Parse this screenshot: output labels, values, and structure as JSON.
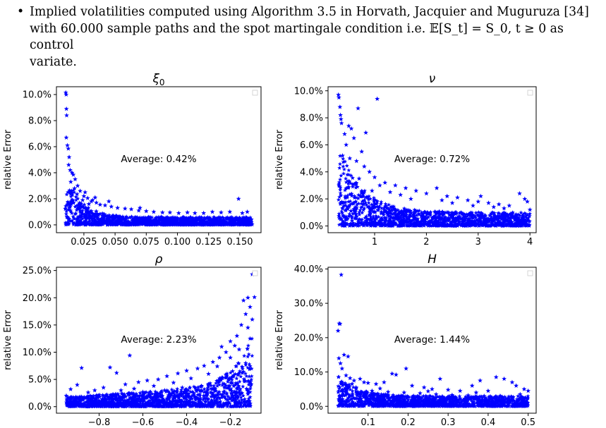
{
  "document": {
    "bullet_symbol": "•",
    "paragraph": {
      "line1": "Implied volatilities computed using Algorithm 3.5 in Horvath, Jacquier and Muguruza [34]",
      "line2": "with 60.000 sample paths and the spot martingale condition i.e. 𝔼[S_t] = S_0, t ≥ 0 as control",
      "line3": "variate."
    }
  },
  "chart_data": [
    {
      "type": "scatter",
      "title": "ξ0",
      "xlabel": "",
      "ylabel": "relative Error",
      "annotation": "Average: 0.42%",
      "xlim": [
        0.003,
        0.167
      ],
      "ylim": [
        -0.6,
        10.6
      ],
      "xticks": [
        0.025,
        0.05,
        0.075,
        0.1,
        0.125,
        0.15
      ],
      "xtick_labels": [
        "0.025",
        "0.050",
        "0.075",
        "0.100",
        "0.125",
        "0.150"
      ],
      "yticks": [
        0,
        2,
        4,
        6,
        8,
        10
      ],
      "ytick_labels": [
        "0.0%",
        "2.0%",
        "4.0%",
        "6.0%",
        "8.0%",
        "10.0%"
      ],
      "marker_color": "#0000ff",
      "marker": "star",
      "grid": false,
      "legend": "top-right, empty box",
      "series": [
        {
          "values": [
            [
              0.0105,
              10.15
            ],
            [
              0.0108,
              10.0
            ],
            [
              0.011,
              8.9
            ],
            [
              0.0112,
              8.4
            ],
            [
              0.0109,
              6.7
            ],
            [
              0.0118,
              6.1
            ],
            [
              0.0125,
              5.85
            ],
            [
              0.0132,
              5.2
            ],
            [
              0.0128,
              4.6
            ],
            [
              0.014,
              4.2
            ],
            [
              0.0155,
              4.0
            ],
            [
              0.0165,
              3.85
            ],
            [
              0.018,
              3.5
            ],
            [
              0.0145,
              3.3
            ],
            [
              0.02,
              3.0
            ],
            [
              0.0175,
              2.8
            ],
            [
              0.022,
              2.6
            ],
            [
              0.0195,
              2.35
            ],
            [
              0.025,
              2.2
            ],
            [
              0.028,
              2.05
            ],
            [
              0.024,
              1.9
            ],
            [
              0.031,
              1.8
            ],
            [
              0.035,
              1.7
            ],
            [
              0.029,
              1.6
            ],
            [
              0.038,
              1.55
            ],
            [
              0.042,
              1.5
            ],
            [
              0.047,
              1.4
            ],
            [
              0.052,
              1.3
            ],
            [
              0.058,
              1.25
            ],
            [
              0.063,
              1.2
            ],
            [
              0.069,
              1.1
            ],
            [
              0.075,
              1.05
            ],
            [
              0.081,
              1.0
            ],
            [
              0.088,
              0.95
            ],
            [
              0.094,
              0.95
            ],
            [
              0.101,
              0.9
            ],
            [
              0.108,
              0.95
            ],
            [
              0.114,
              0.9
            ],
            [
              0.121,
              0.9
            ],
            [
              0.128,
              1.0
            ],
            [
              0.135,
              0.95
            ],
            [
              0.142,
              1.0
            ],
            [
              0.149,
              2.0
            ],
            [
              0.152,
              0.9
            ],
            [
              0.156,
              1.0
            ],
            [
              0.045,
              1.8
            ],
            [
              0.034,
              2.1
            ],
            [
              0.026,
              2.5
            ],
            [
              0.032,
              1.9
            ],
            [
              0.07,
              1.3
            ]
          ]
        }
      ]
    },
    {
      "type": "scatter",
      "title": "ν",
      "xlabel": "",
      "ylabel": "relative Error",
      "annotation": "Average: 0.72%",
      "xlim": [
        0.1,
        4.12
      ],
      "ylim": [
        -0.5,
        10.3
      ],
      "xticks": [
        1,
        2,
        3,
        4
      ],
      "xtick_labels": [
        "1",
        "2",
        "3",
        "4"
      ],
      "yticks": [
        0,
        2,
        4,
        6,
        8,
        10
      ],
      "ytick_labels": [
        "0.0%",
        "2.0%",
        "4.0%",
        "6.0%",
        "8.0%",
        "10.0%"
      ],
      "marker_color": "#0000ff",
      "marker": "star",
      "grid": false,
      "legend": "top-right, empty box",
      "series": [
        {
          "values": [
            [
              0.3,
              9.7
            ],
            [
              0.31,
              9.5
            ],
            [
              0.33,
              8.8
            ],
            [
              0.34,
              8.2
            ],
            [
              0.35,
              7.9
            ],
            [
              0.36,
              7.6
            ],
            [
              0.5,
              7.4
            ],
            [
              0.55,
              7.2
            ],
            [
              0.68,
              8.7
            ],
            [
              0.83,
              6.9
            ],
            [
              1.05,
              9.4
            ],
            [
              0.42,
              6.8
            ],
            [
              0.6,
              6.5
            ],
            [
              0.45,
              6.0
            ],
            [
              0.75,
              5.5
            ],
            [
              0.38,
              5.2
            ],
            [
              0.52,
              5.0
            ],
            [
              0.65,
              4.8
            ],
            [
              0.8,
              4.4
            ],
            [
              0.9,
              4.0
            ],
            [
              1.0,
              3.6
            ],
            [
              1.2,
              3.2
            ],
            [
              1.4,
              3.0
            ],
            [
              1.6,
              2.8
            ],
            [
              1.8,
              2.6
            ],
            [
              2.0,
              2.4
            ],
            [
              2.2,
              2.8
            ],
            [
              2.4,
              2.2
            ],
            [
              2.6,
              2.1
            ],
            [
              2.8,
              1.9
            ],
            [
              3.0,
              1.8
            ],
            [
              3.05,
              2.2
            ],
            [
              3.2,
              1.7
            ],
            [
              3.4,
              1.6
            ],
            [
              3.6,
              1.5
            ],
            [
              3.8,
              2.4
            ],
            [
              3.9,
              2.0
            ],
            [
              3.95,
              1.8
            ],
            [
              1.1,
              3.0
            ],
            [
              0.7,
              3.5
            ],
            [
              1.5,
              2.3
            ],
            [
              2.3,
              1.9
            ],
            [
              2.9,
              1.5
            ],
            [
              3.5,
              1.3
            ],
            [
              0.95,
              2.6
            ],
            [
              1.3,
              2.5
            ],
            [
              1.7,
              2.0
            ],
            [
              2.5,
              1.7
            ],
            [
              3.3,
              1.4
            ],
            [
              4.0,
              1.2
            ]
          ]
        }
      ]
    },
    {
      "type": "scatter",
      "title": "ρ",
      "xlabel": "",
      "ylabel": "relative Error",
      "annotation": "Average: 2.23%",
      "xlim": [
        -0.995,
        -0.06
      ],
      "ylim": [
        -1.2,
        25.6
      ],
      "xticks": [
        -0.8,
        -0.6,
        -0.4,
        -0.2
      ],
      "xtick_labels": [
        "−0.8",
        "−0.6",
        "−0.4",
        "−0.2"
      ],
      "yticks": [
        0,
        5,
        10,
        15,
        20,
        25
      ],
      "ytick_labels": [
        "0.0%",
        "5.0%",
        "10.0%",
        "15.0%",
        "20.0%",
        "25.0%"
      ],
      "marker_color": "#0000ff",
      "marker": "star",
      "grid": false,
      "legend": "top-right, empty box",
      "series": [
        {
          "values": [
            [
              -0.1,
              24.3
            ],
            [
              -0.12,
              20.0
            ],
            [
              -0.09,
              20.1
            ],
            [
              -0.14,
              19.5
            ],
            [
              -0.11,
              18.3
            ],
            [
              -0.13,
              17.0
            ],
            [
              -0.1,
              16.0
            ],
            [
              -0.15,
              15.0
            ],
            [
              -0.12,
              14.5
            ],
            [
              -0.17,
              13.0
            ],
            [
              -0.2,
              12.0
            ],
            [
              -0.18,
              11.2
            ],
            [
              -0.22,
              10.0
            ],
            [
              -0.16,
              10.5
            ],
            [
              -0.25,
              9.0
            ],
            [
              -0.28,
              8.2
            ],
            [
              -0.32,
              7.5
            ],
            [
              -0.35,
              7.0
            ],
            [
              -0.4,
              6.6
            ],
            [
              -0.44,
              6.1
            ],
            [
              -0.49,
              5.6
            ],
            [
              -0.53,
              5.0
            ],
            [
              -0.58,
              4.8
            ],
            [
              -0.62,
              4.5
            ],
            [
              -0.66,
              9.4
            ],
            [
              -0.68,
              4.1
            ],
            [
              -0.72,
              6.2
            ],
            [
              -0.75,
              7.2
            ],
            [
              -0.78,
              3.5
            ],
            [
              -0.82,
              3.0
            ],
            [
              -0.88,
              7.1
            ],
            [
              -0.9,
              4.0
            ],
            [
              -0.93,
              3.2
            ],
            [
              -0.95,
              2.0
            ],
            [
              -0.3,
              6.0
            ],
            [
              -0.38,
              5.2
            ],
            [
              -0.46,
              4.4
            ],
            [
              -0.55,
              3.8
            ],
            [
              -0.64,
              3.3
            ],
            [
              -0.7,
              3.0
            ],
            [
              -0.85,
              2.6
            ],
            [
              -0.26,
              7.4
            ],
            [
              -0.2,
              9.0
            ],
            [
              -0.24,
              11.0
            ],
            [
              -0.19,
              6.5
            ],
            [
              -0.11,
              12.5
            ],
            [
              -0.13,
              8.0
            ],
            [
              -0.42,
              3.5
            ],
            [
              -0.5,
              3.0
            ],
            [
              -0.6,
              2.7
            ]
          ]
        }
      ]
    },
    {
      "type": "scatter",
      "title": "H",
      "xlabel": "",
      "ylabel": "relative Error",
      "annotation": "Average: 1.44%",
      "xlim": [
        0.0,
        0.52
      ],
      "ylim": [
        -2.0,
        40.5
      ],
      "xticks": [
        0.1,
        0.2,
        0.3,
        0.4,
        0.5
      ],
      "xtick_labels": [
        "0.1",
        "0.2",
        "0.3",
        "0.4",
        "0.5"
      ],
      "yticks": [
        0,
        10,
        20,
        30,
        40
      ],
      "ytick_labels": [
        "0.0%",
        "10.0%",
        "20.0%",
        "30.0%",
        "40.0%"
      ],
      "marker_color": "#0000ff",
      "marker": "star",
      "grid": false,
      "legend": "top-right, empty box",
      "series": [
        {
          "values": [
            [
              0.033,
              38.3
            ],
            [
              0.028,
              24.1
            ],
            [
              0.03,
              24.0
            ],
            [
              0.025,
              22.0
            ],
            [
              0.027,
              14.0
            ],
            [
              0.04,
              15.0
            ],
            [
              0.05,
              14.5
            ],
            [
              0.031,
              12.5
            ],
            [
              0.035,
              11.0
            ],
            [
              0.045,
              9.0
            ],
            [
              0.055,
              8.2
            ],
            [
              0.065,
              7.5
            ],
            [
              0.08,
              8.0
            ],
            [
              0.09,
              7.0
            ],
            [
              0.1,
              6.8
            ],
            [
              0.12,
              6.5
            ],
            [
              0.14,
              7.0
            ],
            [
              0.16,
              9.5
            ],
            [
              0.17,
              9.2
            ],
            [
              0.195,
              11.0
            ],
            [
              0.21,
              6.0
            ],
            [
              0.24,
              5.5
            ],
            [
              0.26,
              5.0
            ],
            [
              0.28,
              8.0
            ],
            [
              0.3,
              4.8
            ],
            [
              0.33,
              4.5
            ],
            [
              0.36,
              6.0
            ],
            [
              0.38,
              7.5
            ],
            [
              0.4,
              4.5
            ],
            [
              0.42,
              8.5
            ],
            [
              0.44,
              8.0
            ],
            [
              0.46,
              7.0
            ],
            [
              0.47,
              6.0
            ],
            [
              0.49,
              5.0
            ],
            [
              0.5,
              4.5
            ],
            [
              0.07,
              5.5
            ],
            [
              0.11,
              4.5
            ],
            [
              0.15,
              4.2
            ],
            [
              0.19,
              4.0
            ],
            [
              0.23,
              3.8
            ],
            [
              0.27,
              3.5
            ],
            [
              0.31,
              3.3
            ],
            [
              0.35,
              3.2
            ],
            [
              0.39,
              3.0
            ],
            [
              0.43,
              3.0
            ],
            [
              0.48,
              3.5
            ],
            [
              0.06,
              6.5
            ],
            [
              0.13,
              5.2
            ],
            [
              0.25,
              4.4
            ],
            [
              0.37,
              4.0
            ]
          ]
        }
      ]
    }
  ]
}
